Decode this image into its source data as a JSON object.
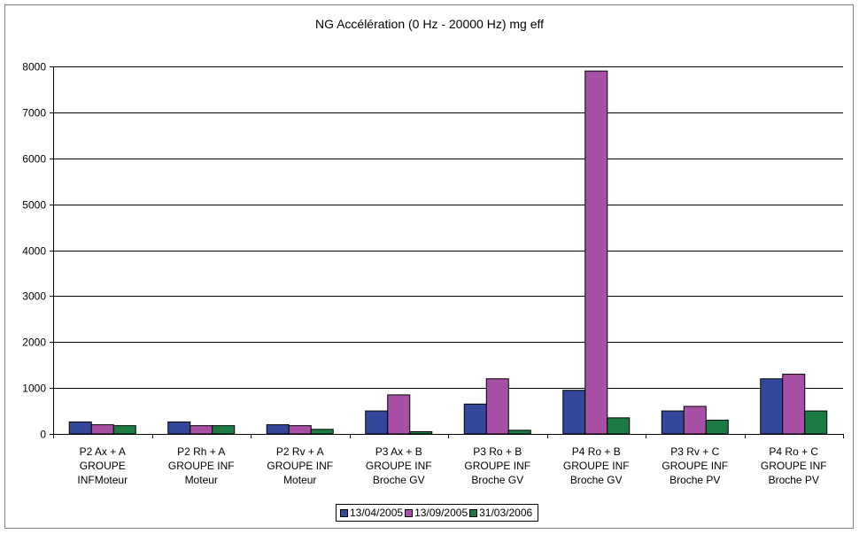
{
  "chart_data": {
    "type": "bar",
    "title": "NG Accélération (0 Hz - 20000 Hz) mg eff",
    "categories": [
      [
        "P2 Ax + A",
        "GROUPE",
        "INFMoteur"
      ],
      [
        "P2 Rh + A",
        "GROUPE INF",
        "Moteur"
      ],
      [
        "P2 Rv + A",
        "GROUPE INF",
        "Moteur"
      ],
      [
        "P3 Ax + B",
        "GROUPE INF",
        "Broche GV"
      ],
      [
        "P3 Ro + B",
        "GROUPE INF",
        "Broche GV"
      ],
      [
        "P4 Ro + B",
        "GROUPE INF",
        "Broche GV"
      ],
      [
        "P3 Rv + C",
        "GROUPE INF",
        "Broche PV"
      ],
      [
        "P4 Ro + C",
        "GROUPE INF",
        "Broche PV"
      ]
    ],
    "series": [
      {
        "name": "13/04/2005",
        "color": "#33479c",
        "values": [
          260,
          260,
          200,
          500,
          650,
          950,
          500,
          1200
        ]
      },
      {
        "name": "13/09/2005",
        "color": "#a84fa6",
        "values": [
          200,
          180,
          180,
          850,
          1200,
          7900,
          600,
          1300
        ]
      },
      {
        "name": "31/03/2006",
        "color": "#1c7a43",
        "values": [
          180,
          180,
          100,
          50,
          80,
          350,
          300,
          500
        ]
      }
    ],
    "ylim": [
      0,
      8000
    ],
    "yticks": [
      0,
      1000,
      2000,
      3000,
      4000,
      5000,
      6000,
      7000,
      8000
    ],
    "grid": true,
    "legend_position": "bottom"
  }
}
